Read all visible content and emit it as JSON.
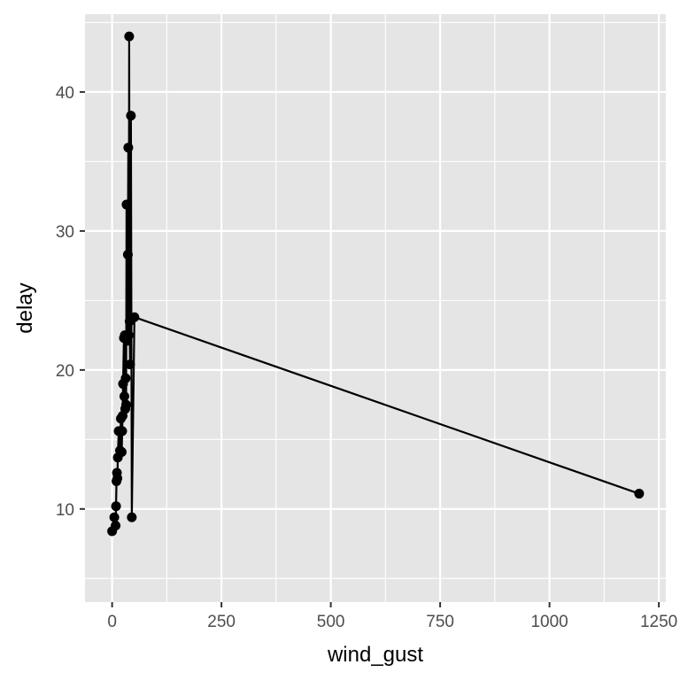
{
  "chart_data": {
    "type": "line",
    "xlabel": "wind_gust",
    "ylabel": "delay",
    "xlim": [
      -62,
      1266
    ],
    "ylim": [
      3.3,
      45.6
    ],
    "x_ticks": [
      0,
      250,
      500,
      750,
      1000,
      1250
    ],
    "x_tick_labels": [
      "0",
      "250",
      "500",
      "750",
      "1000",
      "1250"
    ],
    "y_ticks": [
      10,
      20,
      30,
      40
    ],
    "y_tick_labels": [
      "10",
      "20",
      "30",
      "40"
    ],
    "grid": true,
    "points_visible": true,
    "line_color": "#000000",
    "panel_color": "#e5e5e5",
    "grid_color": "#ffffff",
    "series": [
      {
        "points": [
          [
            0,
            8.4
          ],
          [
            5,
            9.4
          ],
          [
            8,
            8.8
          ],
          [
            9,
            10.2
          ],
          [
            10,
            12.0
          ],
          [
            11,
            12.6
          ],
          [
            12,
            12.2
          ],
          [
            13,
            13.7
          ],
          [
            15,
            15.6
          ],
          [
            18,
            14.2
          ],
          [
            20,
            16.5
          ],
          [
            22,
            14.1
          ],
          [
            23,
            15.6
          ],
          [
            24,
            16.7
          ],
          [
            25,
            19.0
          ],
          [
            27,
            22.3
          ],
          [
            28,
            18.1
          ],
          [
            29,
            22.5
          ],
          [
            30,
            17.2
          ],
          [
            31,
            19.4
          ],
          [
            32,
            17.5
          ],
          [
            33,
            31.9
          ],
          [
            35,
            22.1
          ],
          [
            36,
            28.3
          ],
          [
            37,
            36.0
          ],
          [
            38,
            22.5
          ],
          [
            39,
            44.0
          ],
          [
            40,
            23.5
          ],
          [
            41,
            20.4
          ],
          [
            43,
            38.3
          ],
          [
            45,
            9.4
          ],
          [
            51,
            23.8
          ],
          [
            1205,
            11.1
          ]
        ]
      }
    ]
  }
}
